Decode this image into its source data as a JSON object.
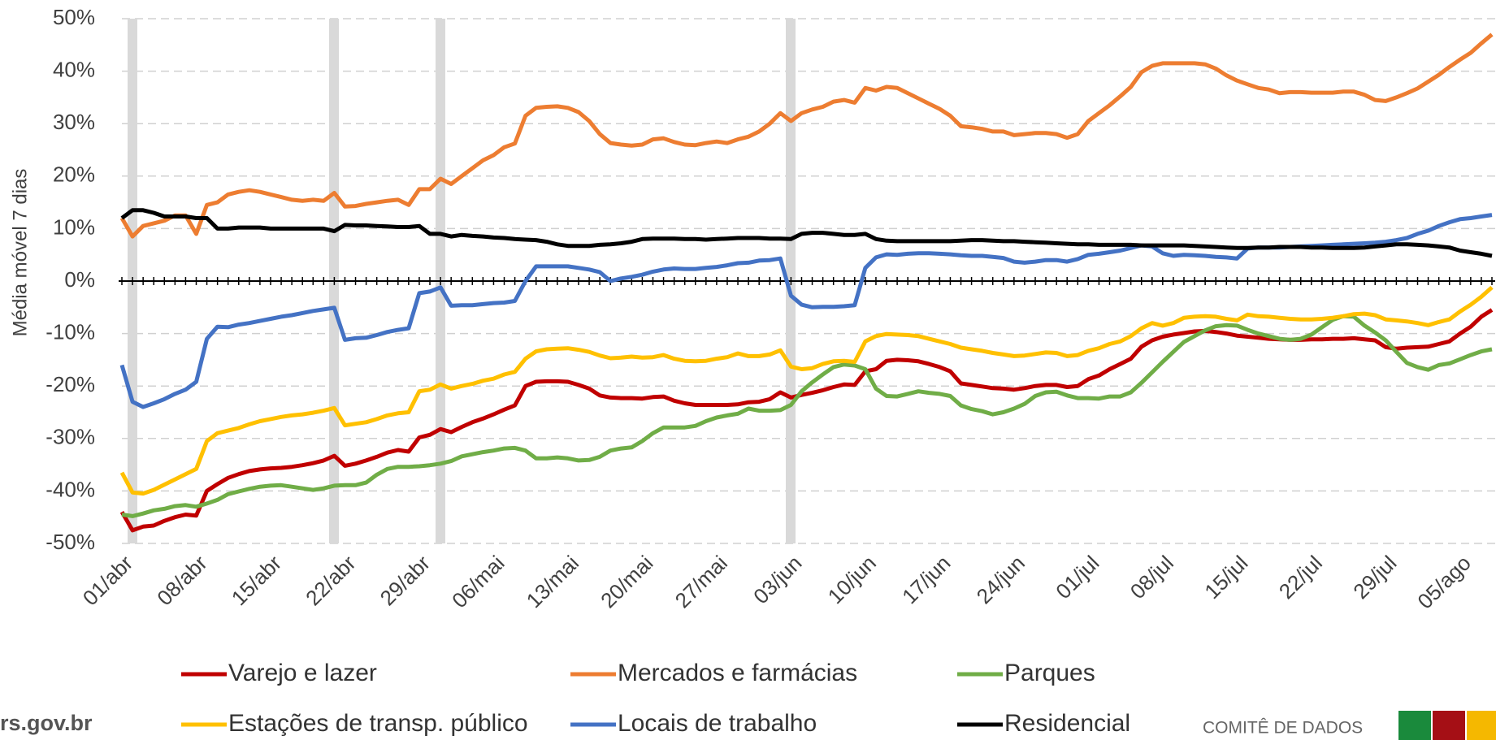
{
  "chart_data": {
    "type": "line",
    "y_label": "Média móvel 7 dias",
    "categories": [
      "01/abr",
      null,
      null,
      null,
      null,
      null,
      null,
      "08/abr",
      null,
      null,
      null,
      null,
      null,
      null,
      "15/abr",
      null,
      null,
      null,
      null,
      null,
      null,
      "22/abr",
      null,
      null,
      null,
      null,
      null,
      null,
      "29/abr",
      null,
      null,
      null,
      null,
      null,
      null,
      "06/mai",
      null,
      null,
      null,
      null,
      null,
      null,
      "13/mai",
      null,
      null,
      null,
      null,
      null,
      null,
      "20/mai",
      null,
      null,
      null,
      null,
      null,
      null,
      "27/mai",
      null,
      null,
      null,
      null,
      null,
      null,
      "03/jun",
      null,
      null,
      null,
      null,
      null,
      null,
      "10/jun",
      null,
      null,
      null,
      null,
      null,
      null,
      "17/jun",
      null,
      null,
      null,
      null,
      null,
      null,
      "24/jun",
      null,
      null,
      null,
      null,
      null,
      null,
      "01/jul",
      null,
      null,
      null,
      null,
      null,
      null,
      "08/jul",
      null,
      null,
      null,
      null,
      null,
      null,
      "15/jul",
      null,
      null,
      null,
      null,
      null,
      null,
      "22/jul",
      null,
      null,
      null,
      null,
      null,
      null,
      "29/jul",
      null,
      null,
      null,
      null,
      null,
      null,
      "05/ago",
      null,
      null,
      null
    ],
    "series": [
      {
        "name": "Varejo e lazer",
        "color": "#c00000",
        "values": [
          -44,
          -47.5,
          -46.8,
          -46.6,
          -45.7,
          -45,
          -44.5,
          -44.7,
          -40,
          -38.7,
          -37.5,
          -36.8,
          -36.2,
          -35.9,
          -35.7,
          -35.6,
          -35.4,
          -35.1,
          -34.7,
          -34.2,
          -33.3,
          -35.2,
          -34.8,
          -34.2,
          -33.5,
          -32.7,
          -32.2,
          -32.5,
          -29.8,
          -29.3,
          -28.2,
          -28.8,
          -27.8,
          -26.9,
          -26.2,
          -25.4,
          -24.5,
          -23.7,
          -20,
          -19.2,
          -19.1,
          -19.1,
          -19.2,
          -19.8,
          -20.5,
          -21.8,
          -22.2,
          -22.3,
          -22.3,
          -22.4,
          -22.1,
          -22,
          -22.8,
          -23.3,
          -23.6,
          -23.6,
          -23.6,
          -23.6,
          -23.5,
          -23.1,
          -23,
          -22.5,
          -21.2,
          -22.2,
          -21.7,
          -21.3,
          -20.8,
          -20.2,
          -19.7,
          -19.8,
          -17.2,
          -16.8,
          -15.2,
          -15,
          -15.1,
          -15.3,
          -15.8,
          -16.4,
          -17.2,
          -19.5,
          -19.8,
          -20.1,
          -20.4,
          -20.5,
          -20.7,
          -20.4,
          -20,
          -19.8,
          -19.8,
          -20.2,
          -20,
          -18.7,
          -18,
          -16.8,
          -15.8,
          -14.8,
          -12.5,
          -11.3,
          -10.6,
          -10.2,
          -9.9,
          -9.6,
          -9.5,
          -9.7,
          -10,
          -10.4,
          -10.6,
          -10.8,
          -11,
          -11.1,
          -11.2,
          -11.2,
          -11.1,
          -11.1,
          -11,
          -11,
          -10.9,
          -11.1,
          -11.3,
          -12.6,
          -12.9,
          -12.7,
          -12.6,
          -12.5,
          -12,
          -11.5,
          -10,
          -8.7,
          -6.8,
          -5.5
        ]
      },
      {
        "name": "Mercados e farmácias",
        "color": "#ed7d31",
        "values": [
          12,
          8.5,
          10.5,
          11,
          11.5,
          12.5,
          12.5,
          9,
          14.5,
          15,
          16.5,
          17,
          17.3,
          17,
          16.5,
          16,
          15.5,
          15.3,
          15.5,
          15.3,
          16.8,
          14.2,
          14.3,
          14.7,
          15,
          15.3,
          15.5,
          14.5,
          17.5,
          17.5,
          19.5,
          18.5,
          20,
          21.5,
          23,
          24,
          25.5,
          26.2,
          31.5,
          33,
          33.2,
          33.3,
          33,
          32.2,
          30.5,
          28,
          26.3,
          26,
          25.8,
          26,
          27,
          27.2,
          26.5,
          26,
          25.9,
          26.3,
          26.6,
          26.3,
          27,
          27.5,
          28.5,
          30,
          32,
          30.5,
          32,
          32.7,
          33.2,
          34.2,
          34.5,
          34,
          36.8,
          36.3,
          37,
          36.8,
          35.8,
          34.8,
          33.8,
          32.8,
          31.5,
          29.5,
          29.3,
          29,
          28.5,
          28.5,
          27.8,
          28,
          28.2,
          28.2,
          28,
          27.3,
          28,
          30.5,
          32,
          33.5,
          35.2,
          37,
          39.8,
          41,
          41.5,
          41.5,
          41.5,
          41.5,
          41.3,
          40.5,
          39.2,
          38.2,
          37.5,
          36.8,
          36.5,
          35.8,
          36,
          36,
          35.9,
          35.9,
          35.9,
          36.1,
          36.1,
          35.5,
          34.5,
          34.3,
          35,
          35.8,
          36.7,
          38,
          39.3,
          40.8,
          42.2,
          43.5,
          45.3,
          47
        ]
      },
      {
        "name": "Parques",
        "color": "#70ad47",
        "values": [
          -44.5,
          -44.8,
          -44.3,
          -43.7,
          -43.4,
          -42.9,
          -42.7,
          -43,
          -42.4,
          -41.7,
          -40.6,
          -40.1,
          -39.6,
          -39.2,
          -39,
          -38.9,
          -39.2,
          -39.5,
          -39.8,
          -39.5,
          -39,
          -38.9,
          -38.9,
          -38.4,
          -36.9,
          -35.8,
          -35.4,
          -35.4,
          -35.3,
          -35.1,
          -34.8,
          -34.3,
          -33.4,
          -33,
          -32.6,
          -32.3,
          -31.9,
          -31.8,
          -32.3,
          -33.8,
          -33.8,
          -33.6,
          -33.8,
          -34.2,
          -34.1,
          -33.5,
          -32.3,
          -31.9,
          -31.7,
          -30.5,
          -29,
          -27.9,
          -27.9,
          -27.9,
          -27.6,
          -26.7,
          -26,
          -25.6,
          -25.3,
          -24.3,
          -24.7,
          -24.7,
          -24.6,
          -23.6,
          -21,
          -19.3,
          -17.8,
          -16.4,
          -15.9,
          -16.1,
          -16.8,
          -20.5,
          -21.9,
          -22,
          -21.5,
          -21,
          -21.3,
          -21.5,
          -21.9,
          -23.7,
          -24.4,
          -24.8,
          -25.4,
          -25,
          -24.3,
          -23.4,
          -21.9,
          -21.2,
          -21.1,
          -21.8,
          -22.3,
          -22.3,
          -22.4,
          -22,
          -22,
          -21.2,
          -19.4,
          -17.4,
          -15.4,
          -13.5,
          -11.6,
          -10.5,
          -9.4,
          -8.6,
          -8.4,
          -8.5,
          -9.3,
          -10,
          -10.5,
          -11,
          -11.2,
          -11,
          -10.2,
          -8.8,
          -7.4,
          -6.7,
          -6.8,
          -8.5,
          -9.8,
          -11.3,
          -13.5,
          -15.6,
          -16.4,
          -16.9,
          -16,
          -15.7,
          -14.9,
          -14.1,
          -13.4,
          -13
        ]
      },
      {
        "name": "Estações de transp. público",
        "color": "#ffc000",
        "values": [
          -36.5,
          -40.3,
          -40.5,
          -39.8,
          -38.8,
          -37.8,
          -36.8,
          -35.8,
          -30.5,
          -29,
          -28.5,
          -28,
          -27.3,
          -26.7,
          -26.3,
          -25.9,
          -25.6,
          -25.4,
          -25.1,
          -24.7,
          -24.2,
          -27.5,
          -27.2,
          -26.9,
          -26.3,
          -25.6,
          -25.2,
          -25,
          -21,
          -20.7,
          -19.7,
          -20.5,
          -20,
          -19.6,
          -19,
          -18.6,
          -17.8,
          -17.3,
          -14.8,
          -13.4,
          -13,
          -12.9,
          -12.8,
          -13.1,
          -13.5,
          -14.2,
          -14.7,
          -14.6,
          -14.4,
          -14.6,
          -14.5,
          -14.1,
          -14.8,
          -15.2,
          -15.3,
          -15.2,
          -14.8,
          -14.5,
          -13.8,
          -14.3,
          -14.3,
          -14,
          -13.2,
          -16.3,
          -16.8,
          -16.6,
          -15.8,
          -15.3,
          -15.2,
          -15.4,
          -11.5,
          -10.5,
          -10.1,
          -10.2,
          -10.3,
          -10.5,
          -11,
          -11.5,
          -12,
          -12.7,
          -13,
          -13.3,
          -13.7,
          -14,
          -14.3,
          -14.2,
          -13.9,
          -13.6,
          -13.7,
          -14.3,
          -14.1,
          -13.3,
          -12.8,
          -12,
          -11.5,
          -10.5,
          -9,
          -8,
          -8.5,
          -8,
          -7,
          -6.8,
          -6.7,
          -6.8,
          -7.2,
          -7.5,
          -6.4,
          -6.7,
          -6.8,
          -7,
          -7.2,
          -7.3,
          -7.3,
          -7.2,
          -7,
          -6.7,
          -6.3,
          -6.2,
          -6.5,
          -7.3,
          -7.5,
          -7.7,
          -8,
          -8.4,
          -7.8,
          -7.3,
          -5.8,
          -4.5,
          -3,
          -1.2
        ]
      },
      {
        "name": "Locais de trabalho",
        "color": "#4472c4",
        "values": [
          -16,
          -23,
          -24,
          -23.3,
          -22.5,
          -21.5,
          -20.7,
          -19.2,
          -11,
          -8.7,
          -8.8,
          -8.3,
          -8,
          -7.6,
          -7.2,
          -6.8,
          -6.5,
          -6.1,
          -5.7,
          -5.4,
          -5.1,
          -11.2,
          -10.9,
          -10.8,
          -10.3,
          -9.7,
          -9.3,
          -9,
          -2.3,
          -2,
          -1.2,
          -4.7,
          -4.6,
          -4.6,
          -4.4,
          -4.2,
          -4.1,
          -3.8,
          0,
          2.8,
          2.8,
          2.8,
          2.8,
          2.5,
          2.2,
          1.7,
          0,
          0.5,
          0.8,
          1.2,
          1.8,
          2.2,
          2.4,
          2.3,
          2.3,
          2.5,
          2.7,
          3,
          3.4,
          3.5,
          3.9,
          4,
          4.3,
          -2.8,
          -4.5,
          -5,
          -4.9,
          -4.9,
          -4.8,
          -4.6,
          2.5,
          4.5,
          5.1,
          5,
          5.2,
          5.3,
          5.3,
          5.2,
          5.1,
          4.9,
          4.8,
          4.8,
          4.6,
          4.4,
          3.7,
          3.5,
          3.7,
          4,
          4,
          3.7,
          4.2,
          5,
          5.2,
          5.5,
          5.8,
          6.3,
          6.8,
          6.6,
          5.3,
          4.8,
          5,
          4.9,
          4.8,
          4.6,
          4.5,
          4.3,
          6.2,
          6.4,
          6.4,
          6.4,
          6.5,
          6.6,
          6.7,
          6.8,
          6.9,
          7,
          7.1,
          7.2,
          7.3,
          7.5,
          7.8,
          8.2,
          9,
          9.6,
          10.5,
          11.2,
          11.8,
          12,
          12.3,
          12.6
        ]
      },
      {
        "name": "Residencial",
        "color": "#000000",
        "values": [
          12,
          13.5,
          13.5,
          13,
          12.3,
          12.3,
          12.3,
          12,
          12,
          10,
          10,
          10.2,
          10.2,
          10.2,
          10,
          10,
          10,
          10,
          10,
          10,
          9.5,
          10.7,
          10.6,
          10.6,
          10.5,
          10.4,
          10.3,
          10.3,
          10.5,
          9,
          9,
          8.5,
          8.8,
          8.6,
          8.5,
          8.3,
          8.2,
          8,
          7.9,
          7.8,
          7.5,
          7,
          6.7,
          6.7,
          6.7,
          6.9,
          7,
          7.2,
          7.5,
          8,
          8.1,
          8.1,
          8.1,
          8,
          8,
          7.9,
          8,
          8.1,
          8.2,
          8.2,
          8.2,
          8.1,
          8.1,
          8,
          9,
          9.2,
          9.2,
          9,
          8.8,
          8.8,
          9,
          8,
          7.7,
          7.6,
          7.6,
          7.6,
          7.6,
          7.6,
          7.6,
          7.7,
          7.8,
          7.8,
          7.7,
          7.6,
          7.6,
          7.5,
          7.4,
          7.3,
          7.2,
          7.1,
          7,
          7,
          6.9,
          6.9,
          6.9,
          6.9,
          6.8,
          6.8,
          6.8,
          6.8,
          6.8,
          6.7,
          6.6,
          6.5,
          6.4,
          6.3,
          6.3,
          6.4,
          6.4,
          6.5,
          6.5,
          6.5,
          6.4,
          6.4,
          6.3,
          6.3,
          6.3,
          6.4,
          6.6,
          6.8,
          7,
          7,
          6.9,
          6.8,
          6.6,
          6.4,
          5.8,
          5.5,
          5.2,
          4.8
        ]
      }
    ],
    "ylim": [
      -50,
      50
    ],
    "yticks": [
      {
        "value": -50,
        "label": "-50%"
      },
      {
        "value": -40,
        "label": "-40%"
      },
      {
        "value": -30,
        "label": "-30%"
      },
      {
        "value": -20,
        "label": "-20%"
      },
      {
        "value": -10,
        "label": "-10%"
      },
      {
        "value": 0,
        "label": "0%"
      },
      {
        "value": 10,
        "label": "10%"
      },
      {
        "value": 20,
        "label": "20%"
      },
      {
        "value": 30,
        "label": "30%"
      },
      {
        "value": 40,
        "label": "40%"
      },
      {
        "value": 50,
        "label": "50%"
      }
    ],
    "grid": true
  },
  "footer": {
    "source": "rs.gov.br",
    "brand": "COMITÊ DE DADOS"
  }
}
